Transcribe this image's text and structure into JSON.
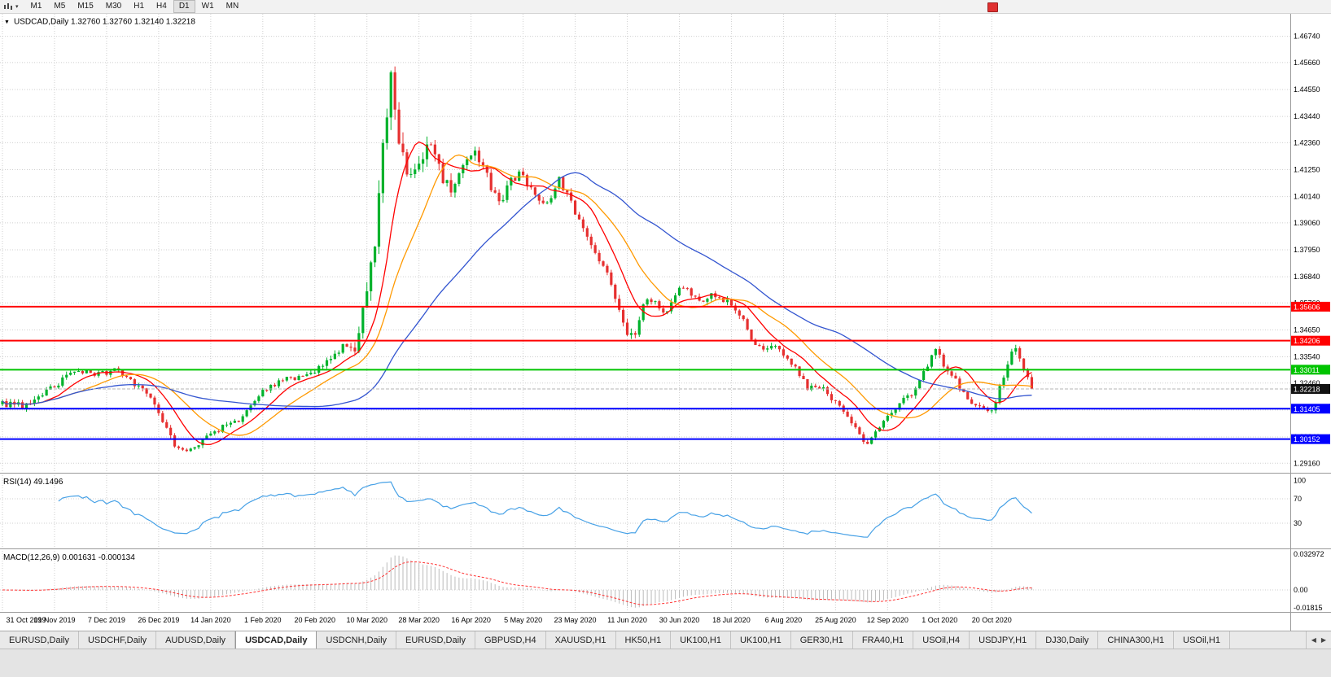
{
  "icons": {
    "collapse_caret": "▼",
    "dropdown_caret": "▾",
    "scroll_left": "◀",
    "scroll_right": "▶"
  },
  "toolbar": {
    "timeframes": [
      "M1",
      "M5",
      "M15",
      "M30",
      "H1",
      "H4",
      "D1",
      "W1",
      "MN"
    ],
    "active_timeframe": "D1"
  },
  "chart": {
    "symbol": "USDCAD,Daily",
    "title": "USDCAD,Daily 1.32760 1.32760 1.32140 1.32218",
    "ohlc": {
      "open": "1.32760",
      "high": "1.32760",
      "low": "1.32140",
      "close": "1.32218"
    }
  },
  "chart_data": {
    "type": "candlestick",
    "symbol": "USDCAD",
    "timeframe": "Daily",
    "title": "USDCAD,Daily 1.32760 1.32760 1.32140 1.32218",
    "x_labels": [
      "31 Oct 2019",
      "19 Nov 2019",
      "7 Dec 2019",
      "26 Dec 2019",
      "14 Jan 2020",
      "1 Feb 2020",
      "20 Feb 2020",
      "10 Mar 2020",
      "28 Mar 2020",
      "16 Apr 2020",
      "5 May 2020",
      "23 May 2020",
      "11 Jun 2020",
      "30 Jun 2020",
      "18 Jul 2020",
      "6 Aug 2020",
      "25 Aug 2020",
      "12 Sep 2020",
      "1 Oct 2020",
      "20 Oct 2020"
    ],
    "candles_per_label": 13,
    "num_candles": 258,
    "plot": {
      "x0": 3,
      "step": 4.92
    },
    "price_range": [
      1.288,
      1.476
    ],
    "y_ticks": [
      1.4674,
      1.4566,
      1.4455,
      1.4344,
      1.4236,
      1.4125,
      1.4014,
      1.3906,
      1.3795,
      1.3684,
      1.3576,
      1.3465,
      1.3354,
      1.3246,
      1.3135,
      1.3024,
      1.2916
    ],
    "levels": [
      {
        "value": 1.35606,
        "label": "1.35606",
        "color": "#FF0000"
      },
      {
        "value": 1.34206,
        "label": "1.34206",
        "color": "#FF0000"
      },
      {
        "value": 1.33011,
        "label": "1.33011",
        "color": "#00C400"
      },
      {
        "value": 1.31405,
        "label": "1.31405",
        "color": "#0000FF"
      },
      {
        "value": 1.30152,
        "label": "1.30152",
        "color": "#0000FF"
      }
    ],
    "current_price": {
      "value": 1.32218,
      "label": "1.32218",
      "box_color": "#111111"
    },
    "anchors": [
      [
        0,
        1.3165,
        0.0035
      ],
      [
        6,
        1.315,
        0.0035
      ],
      [
        13,
        1.3235,
        0.0032
      ],
      [
        19,
        1.3302,
        0.003
      ],
      [
        24,
        1.3285,
        0.0028
      ],
      [
        29,
        1.3298,
        0.0028
      ],
      [
        34,
        1.323,
        0.003
      ],
      [
        39,
        1.3135,
        0.003
      ],
      [
        43,
        1.2988,
        0.0033
      ],
      [
        46,
        1.2958,
        0.003
      ],
      [
        50,
        1.3012,
        0.0028
      ],
      [
        55,
        1.3065,
        0.0028
      ],
      [
        60,
        1.3105,
        0.0026
      ],
      [
        65,
        1.3218,
        0.0026
      ],
      [
        70,
        1.3262,
        0.0026
      ],
      [
        75,
        1.3272,
        0.003
      ],
      [
        80,
        1.3312,
        0.0035
      ],
      [
        85,
        1.3395,
        0.0045
      ],
      [
        88,
        1.3355,
        0.006
      ],
      [
        91,
        1.363,
        0.0095
      ],
      [
        93,
        1.376,
        0.012
      ],
      [
        95,
        1.424,
        0.014
      ],
      [
        97,
        1.4555,
        0.013
      ],
      [
        99,
        1.4285,
        0.012
      ],
      [
        101,
        1.4065,
        0.01
      ],
      [
        104,
        1.4135,
        0.0085
      ],
      [
        106,
        1.4235,
        0.0075
      ],
      [
        109,
        1.413,
        0.007
      ],
      [
        112,
        1.4035,
        0.0065
      ],
      [
        115,
        1.4125,
        0.006
      ],
      [
        118,
        1.4185,
        0.0058
      ],
      [
        121,
        1.4095,
        0.0055
      ],
      [
        124,
        1.3985,
        0.005
      ],
      [
        127,
        1.4085,
        0.0048
      ],
      [
        130,
        1.4105,
        0.0046
      ],
      [
        133,
        1.4025,
        0.0044
      ],
      [
        136,
        1.3985,
        0.0042
      ],
      [
        139,
        1.4095,
        0.0042
      ],
      [
        142,
        1.3985,
        0.004
      ],
      [
        145,
        1.3885,
        0.004
      ],
      [
        148,
        1.3785,
        0.004
      ],
      [
        151,
        1.3685,
        0.004
      ],
      [
        154,
        1.3565,
        0.004
      ],
      [
        156,
        1.3455,
        0.0042
      ],
      [
        158,
        1.3425,
        0.0045
      ],
      [
        160,
        1.3565,
        0.0045
      ],
      [
        163,
        1.3585,
        0.004
      ],
      [
        166,
        1.3535,
        0.0038
      ],
      [
        169,
        1.3655,
        0.0038
      ],
      [
        172,
        1.3605,
        0.0034
      ],
      [
        175,
        1.3585,
        0.0034
      ],
      [
        178,
        1.3615,
        0.0034
      ],
      [
        181,
        1.3575,
        0.0034
      ],
      [
        184,
        1.3535,
        0.0034
      ],
      [
        187,
        1.3415,
        0.0034
      ],
      [
        190,
        1.3385,
        0.0032
      ],
      [
        193,
        1.3395,
        0.003
      ],
      [
        195,
        1.3355,
        0.003
      ],
      [
        198,
        1.3305,
        0.003
      ],
      [
        201,
        1.3225,
        0.003
      ],
      [
        204,
        1.3235,
        0.0028
      ],
      [
        208,
        1.3165,
        0.0028
      ],
      [
        211,
        1.3095,
        0.0028
      ],
      [
        214,
        1.3035,
        0.0028
      ],
      [
        216,
        1.2998,
        0.0028
      ],
      [
        219,
        1.3062,
        0.0028
      ],
      [
        221,
        1.3112,
        0.0028
      ],
      [
        224,
        1.3168,
        0.0028
      ],
      [
        227,
        1.3205,
        0.0028
      ],
      [
        230,
        1.3292,
        0.0032
      ],
      [
        233,
        1.3385,
        0.0036
      ],
      [
        235,
        1.3325,
        0.0032
      ],
      [
        238,
        1.3252,
        0.003
      ],
      [
        241,
        1.3185,
        0.0028
      ],
      [
        244,
        1.3142,
        0.0028
      ],
      [
        247,
        1.3128,
        0.0028
      ],
      [
        249,
        1.3222,
        0.0032
      ],
      [
        251,
        1.3335,
        0.0036
      ],
      [
        253,
        1.3392,
        0.0032
      ],
      [
        255,
        1.3312,
        0.003
      ],
      [
        257,
        1.32218,
        0.0028
      ]
    ],
    "moving_averages": [
      {
        "period": 10,
        "color": "#FF0000"
      },
      {
        "period": 20,
        "color": "#FF9900"
      },
      {
        "period": 50,
        "color": "#3355D0"
      }
    ],
    "rsi": {
      "label": "RSI(14) 49.1496",
      "period": 14,
      "value": 49.1496,
      "levels": [
        100,
        70,
        30
      ],
      "range": [
        -10,
        110
      ]
    },
    "macd": {
      "label": "MACD(12,26,9) 0.001631 -0.000134",
      "fast": 12,
      "slow": 26,
      "signal": 9,
      "main_value": 0.001631,
      "signal_value": -0.000134,
      "axis": [
        "0.032972",
        "0.00",
        "-0.01815"
      ],
      "range": [
        -0.01815,
        0.032972
      ]
    },
    "colors": {
      "up_candle": "#00B22C",
      "down_candle": "#E63030",
      "rsi_line": "#47A1E6",
      "macd_hist": "#BBBBBB",
      "macd_signal": "#FF3333",
      "grid": "#CFCFCF"
    },
    "legend_position": "none",
    "grid": true
  },
  "tabs": {
    "active_index": 3,
    "items": [
      "EURUSD,Daily",
      "USDCHF,Daily",
      "AUDUSD,Daily",
      "USDCAD,Daily",
      "USDCNH,Daily",
      "EURUSD,Daily",
      "GBPUSD,H4",
      "XAUUSD,H1",
      "HK50,H1",
      "UK100,H1",
      "UK100,H1",
      "GER30,H1",
      "FRA40,H1",
      "USOil,H4",
      "USDJPY,H1",
      "DJ30,Daily",
      "CHINA300,H1",
      "USOil,H1"
    ]
  }
}
